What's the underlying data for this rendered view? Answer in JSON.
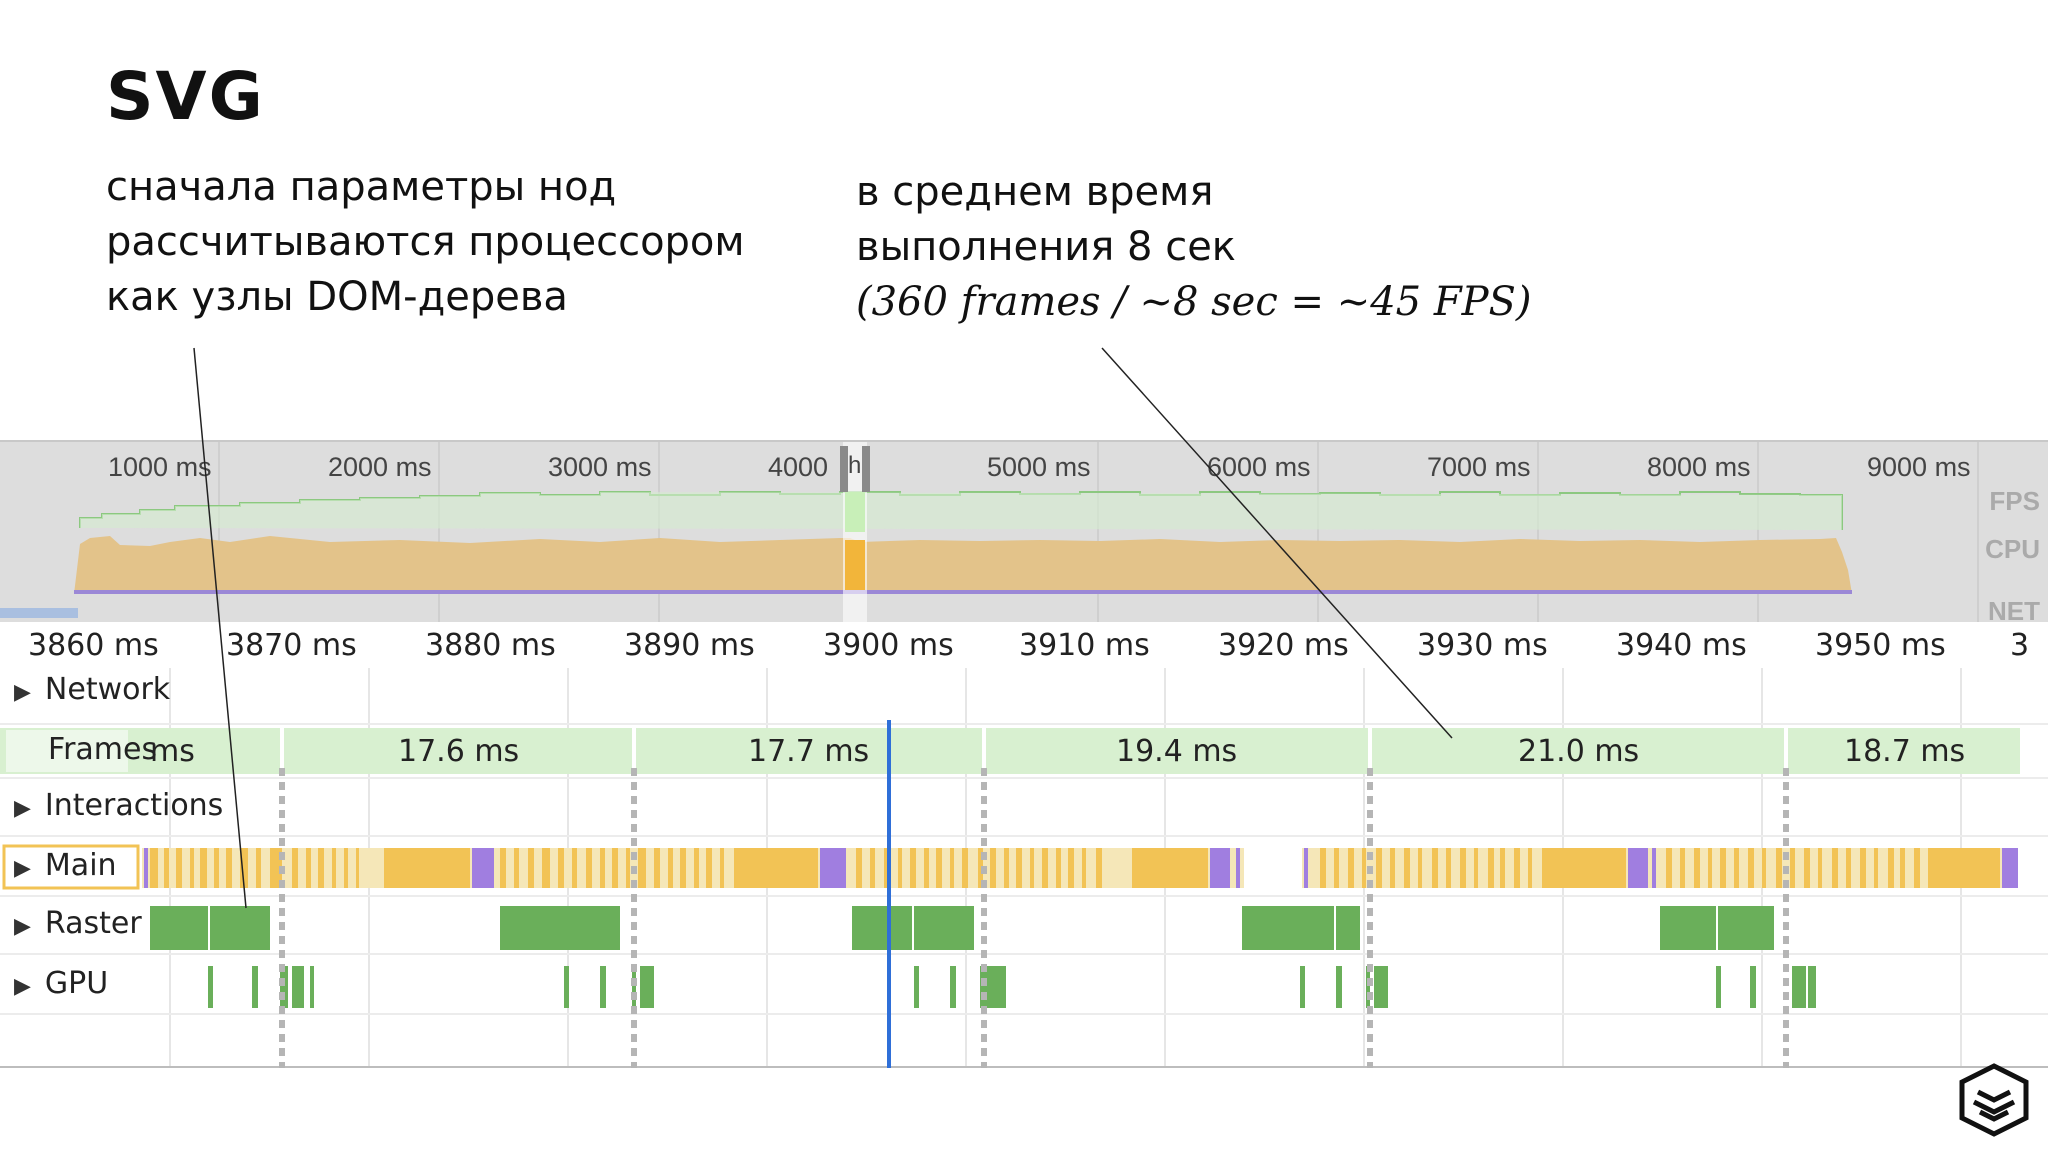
{
  "slide": {
    "title": "SVG",
    "caption_left": [
      "сначала параметры нод",
      "рассчитываются процессором",
      "как узлы DOM-дерева"
    ],
    "caption_right_lines": [
      "в среднем время",
      "выполнения 8 сек"
    ],
    "caption_right_italic": "(360 frames / ~8 sec = ~45 FPS)"
  },
  "overview": {
    "ticks": [
      "1000 ms",
      "2000 ms",
      "3000 ms",
      "4000",
      "5000 ms",
      "6000 ms",
      "7000 ms",
      "8000 ms",
      "9000 ms"
    ],
    "handle_text": "h",
    "labels": [
      "FPS",
      "CPU",
      "NET"
    ]
  },
  "ruler": {
    "ticks": [
      "3860 ms",
      "3870 ms",
      "3880 ms",
      "3890 ms",
      "3900 ms",
      "3910 ms",
      "3920 ms",
      "3930 ms",
      "3940 ms",
      "3950 ms",
      "3"
    ]
  },
  "tracks": {
    "network": "Network",
    "frames": "Frames",
    "interactions": "Interactions",
    "main": "Main",
    "raster": "Raster",
    "gpu": "GPU"
  },
  "frames": {
    "durations": [
      "ms",
      "17.6 ms",
      "17.7 ms",
      "19.4 ms",
      "21.0 ms",
      "18.7 ms"
    ]
  },
  "colors": {
    "frame_green": "#d8f0d0",
    "raster_green": "#6aaf5a",
    "scripting_yellow": "#f2c355",
    "rendering_purple": "#a07ee0",
    "current_time_blue": "#2f6fd8",
    "fps_line": "#8cc880",
    "cpu_fill": "#e3c38a"
  }
}
